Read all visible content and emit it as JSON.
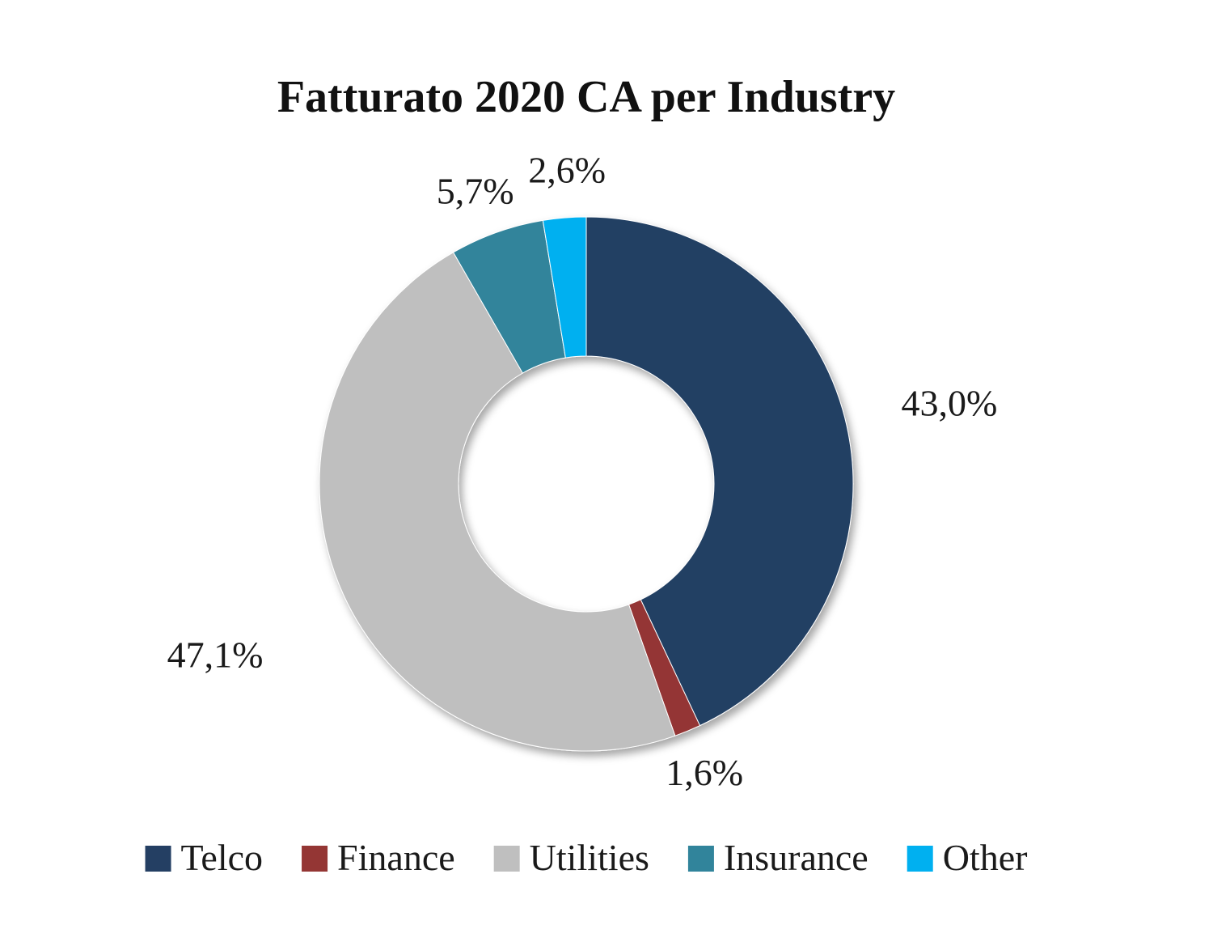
{
  "chart_data": {
    "type": "pie",
    "variant": "donut",
    "title": "Fatturato 2020 CA per Industry",
    "categories": [
      "Telco",
      "Finance",
      "Utilities",
      "Insurance",
      "Other"
    ],
    "values": [
      43.0,
      1.6,
      47.1,
      5.7,
      2.6
    ],
    "value_labels": [
      "43,0%",
      "1,6%",
      "47,1%",
      "5,7%",
      "2,6%"
    ],
    "colors": [
      "#243F63",
      "#943634",
      "#BFBFBF",
      "#31849B",
      "#00B0F0"
    ],
    "legend_position": "bottom",
    "start_angle_deg": 0,
    "direction": "clockwise"
  }
}
